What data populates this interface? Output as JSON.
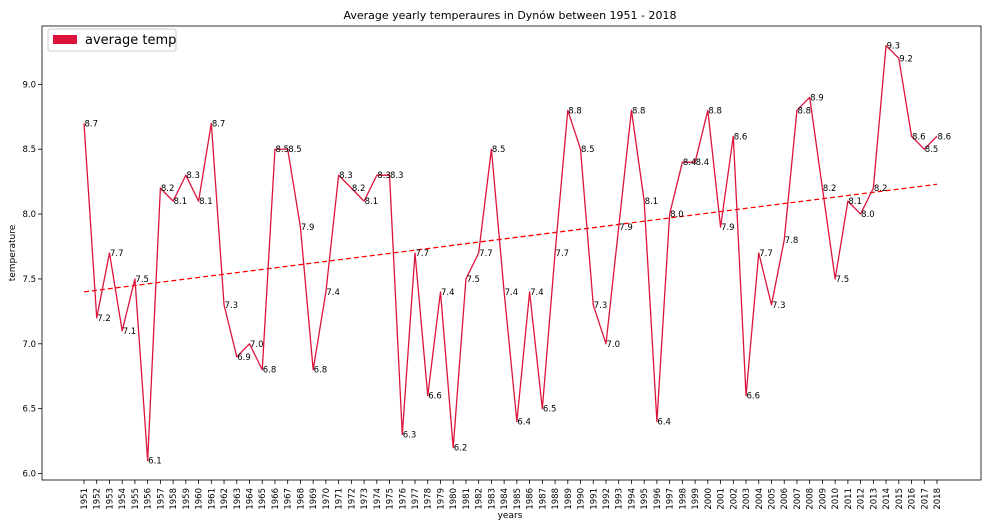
{
  "chart_data": {
    "type": "line",
    "title": "Average yearly temperaures in Dynów between 1951 - 2018",
    "xlabel": "years",
    "ylabel": "temperature",
    "ylim": [
      5.95,
      9.45
    ],
    "yticks": [
      6.0,
      6.5,
      7.0,
      7.5,
      8.0,
      8.5,
      9.0
    ],
    "ytick_labels": [
      "6.0",
      "6.5",
      "7.0",
      "7.5",
      "8.0",
      "8.5",
      "9.0"
    ],
    "grid": false,
    "legend_position": "top-left",
    "x": [
      1951,
      1952,
      1953,
      1954,
      1955,
      1956,
      1957,
      1958,
      1959,
      1960,
      1961,
      1962,
      1963,
      1964,
      1965,
      1966,
      1967,
      1968,
      1969,
      1970,
      1971,
      1972,
      1973,
      1974,
      1975,
      1976,
      1977,
      1978,
      1979,
      1980,
      1981,
      1982,
      1983,
      1984,
      1985,
      1986,
      1987,
      1988,
      1989,
      1990,
      1991,
      1992,
      1993,
      1994,
      1995,
      1996,
      1997,
      1998,
      1999,
      2000,
      2001,
      2002,
      2003,
      2004,
      2005,
      2006,
      2007,
      2008,
      2009,
      2010,
      2011,
      2012,
      2013,
      2014,
      2015,
      2016,
      2017,
      2018
    ],
    "xtick_labels": [
      "1951",
      "1952",
      "1953",
      "1954",
      "1955",
      "1956",
      "1957",
      "1958",
      "1959",
      "1960",
      "1961",
      "1962",
      "1963",
      "1964",
      "1965",
      "1966",
      "1967",
      "1968",
      "1969",
      "1970",
      "1971",
      "1972",
      "1973",
      "1974",
      "1975",
      "1976",
      "1977",
      "1978",
      "1979",
      "1980",
      "1981",
      "1982",
      "1983",
      "1984",
      "1985",
      "1986",
      "1987",
      "1988",
      "1989",
      "1990",
      "1991",
      "1992",
      "1993",
      "1994",
      "1995",
      "1996",
      "1997",
      "1998",
      "1999",
      "2000",
      "2001",
      "2002",
      "2003",
      "2004",
      "2005",
      "2006",
      "2007",
      "2008",
      "2009",
      "2010",
      "2011",
      "2012",
      "2013",
      "2014",
      "2015",
      "2016",
      "2017",
      "2018"
    ],
    "series": [
      {
        "name": "average temp",
        "color": "#dc143c",
        "values": [
          8.7,
          7.2,
          7.7,
          7.1,
          7.5,
          6.1,
          8.2,
          8.1,
          8.3,
          8.1,
          8.7,
          7.3,
          6.9,
          7.0,
          6.8,
          8.5,
          8.5,
          7.9,
          6.8,
          7.4,
          8.3,
          8.2,
          8.1,
          8.3,
          8.3,
          6.3,
          7.7,
          6.6,
          7.4,
          6.2,
          7.5,
          7.7,
          8.5,
          7.4,
          6.4,
          7.4,
          6.5,
          7.7,
          8.8,
          8.5,
          7.3,
          7.0,
          7.9,
          8.8,
          8.1,
          6.4,
          8.0,
          8.4,
          8.4,
          8.8,
          7.9,
          8.6,
          6.6,
          7.7,
          7.3,
          7.8,
          8.8,
          8.9,
          8.2,
          7.5,
          8.1,
          8.0,
          8.2,
          9.3,
          9.2,
          8.6,
          8.5,
          8.6
        ],
        "data_labels": [
          "8.7",
          "7.2",
          "7.7",
          "7.1",
          "7.5",
          "6.1",
          "8.2",
          "8.1",
          "8.3",
          "8.1",
          "8.7",
          "7.3",
          "6.9",
          "7.0",
          "6.8",
          "8.5",
          "8.5",
          "7.9",
          "6.8",
          "7.4",
          "8.3",
          "8.2",
          "8.1",
          "8.3",
          "8.3",
          "6.3",
          "7.7",
          "6.6",
          "7.4",
          "6.2",
          "7.5",
          "7.7",
          "8.5",
          "7.4",
          "6.4",
          "7.4",
          "6.5",
          "7.7",
          "8.8",
          "8.5",
          "7.3",
          "7.0",
          "7.9",
          "8.8",
          "8.1",
          "6.4",
          "8.0",
          "8.4",
          "8.4",
          "8.8",
          "7.9",
          "8.6",
          "6.6",
          "7.7",
          "7.3",
          "7.8",
          "8.8",
          "8.9",
          "8.2",
          "7.5",
          "8.1",
          "8.0",
          "8.2",
          "9.3",
          "9.2",
          "8.6",
          "8.5",
          "8.6"
        ]
      }
    ],
    "trend": {
      "style": "dashed",
      "color": "#ff0000",
      "start": {
        "x": 1951,
        "y": 7.4
      },
      "end": {
        "x": 2018,
        "y": 8.23
      }
    }
  }
}
